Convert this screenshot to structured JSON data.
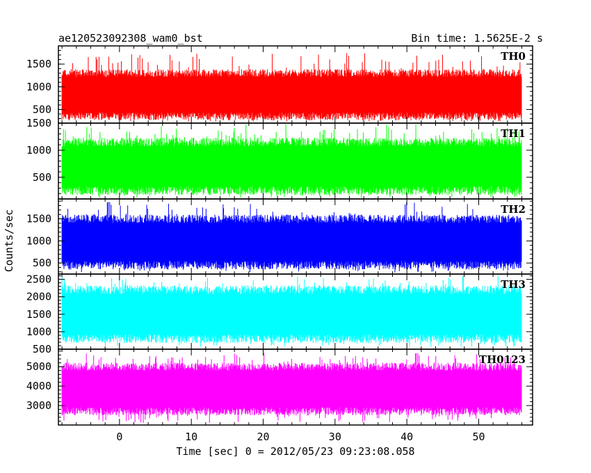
{
  "header": {
    "title": "ae120523092308_wam0_bst",
    "bin_time": "Bin time: 1.5625E-2 s"
  },
  "chart_data": {
    "type": "line",
    "title": "ae120523092308_wam0_bst",
    "subtitle": "Bin time: 1.5625E-2 s",
    "xlabel": "Time [sec] 0 = 2012/05/23 09:23:08.058",
    "ylabel": "Counts/sec",
    "xlim": [
      -8.5,
      57.5
    ],
    "x_ticks": [
      0,
      10,
      20,
      30,
      40,
      50
    ],
    "data_xrange": [
      -8.0,
      56.0
    ],
    "bin_time": 0.015625,
    "grid": false,
    "legend": "none",
    "panels": [
      {
        "name": "TH0",
        "color": "#ff0000",
        "ylim": [
          200,
          1900
        ],
        "y_ticks": [
          500,
          1000,
          1500
        ],
        "typical_low": 350,
        "typical_high": 1300,
        "extreme_low": 230,
        "extreme_high": 1750
      },
      {
        "name": "TH1",
        "color": "#00ff00",
        "ylim": [
          100,
          1500
        ],
        "y_ticks": [
          500,
          1000,
          1500
        ],
        "typical_low": 250,
        "typical_high": 1150,
        "extreme_low": 120,
        "extreme_high": 1480
      },
      {
        "name": "TH2",
        "color": "#0000ff",
        "ylim": [
          250,
          1950
        ],
        "y_ticks": [
          500,
          1000,
          1500
        ],
        "typical_low": 450,
        "typical_high": 1500,
        "extreme_low": 280,
        "extreme_high": 1880
      },
      {
        "name": "TH3",
        "color": "#00ffff",
        "ylim": [
          500,
          2650
        ],
        "y_ticks": [
          500,
          1000,
          1500,
          2000,
          2500
        ],
        "typical_low": 800,
        "typical_high": 2200,
        "extreme_low": 560,
        "extreme_high": 2620
      },
      {
        "name": "TH0123",
        "color": "#ff00ff",
        "ylim": [
          2000,
          5900
        ],
        "y_ticks": [
          3000,
          4000,
          5000
        ],
        "typical_low": 2700,
        "typical_high": 5000,
        "extreme_low": 2100,
        "extreme_high": 5700
      }
    ]
  }
}
